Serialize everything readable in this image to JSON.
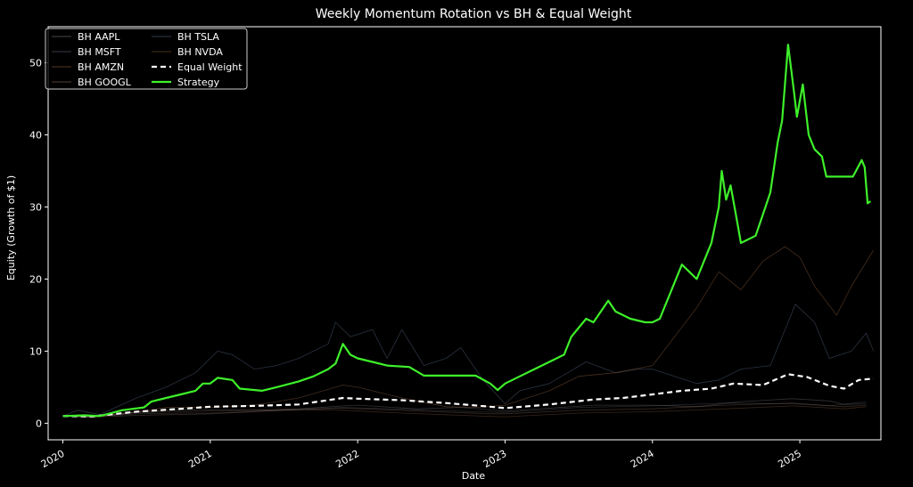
{
  "chart_data": {
    "type": "line",
    "title": "Weekly Momentum Rotation vs BH & Equal Weight",
    "xlabel": "Date",
    "ylabel": "Equity (Growth of $1)",
    "xlim": [
      2019.9,
      2025.55
    ],
    "ylim": [
      -2.3,
      55
    ],
    "x_ticks": [
      2020,
      2021,
      2022,
      2023,
      2024,
      2025
    ],
    "x_tick_labels": [
      "2020",
      "2021",
      "2022",
      "2023",
      "2024",
      "2025"
    ],
    "y_ticks": [
      0,
      10,
      20,
      30,
      40,
      50
    ],
    "y_tick_labels": [
      "0",
      "10",
      "20",
      "30",
      "40",
      "50"
    ],
    "grid": false,
    "legend_position": "top-left",
    "series": [
      {
        "name": "BH AAPL",
        "color": "#8a8a8a",
        "width": 0.8,
        "dash": "",
        "opacity": 0.35,
        "points": [
          [
            2020,
            1
          ],
          [
            2020.2,
            0.85
          ],
          [
            2020.5,
            1.5
          ],
          [
            2020.7,
            1.8
          ],
          [
            2021.0,
            1.9
          ],
          [
            2021.3,
            1.8
          ],
          [
            2021.6,
            2.0
          ],
          [
            2021.9,
            2.4
          ],
          [
            2022.0,
            2.5
          ],
          [
            2022.4,
            2.0
          ],
          [
            2022.7,
            2.2
          ],
          [
            2023.0,
            1.7
          ],
          [
            2023.3,
            2.1
          ],
          [
            2023.6,
            2.5
          ],
          [
            2024.0,
            2.5
          ],
          [
            2024.3,
            2.3
          ],
          [
            2024.6,
            3.0
          ],
          [
            2024.95,
            3.4
          ],
          [
            2025.2,
            3.1
          ],
          [
            2025.3,
            2.6
          ],
          [
            2025.45,
            2.7
          ]
        ]
      },
      {
        "name": "BH MSFT",
        "color": "#6a7080",
        "width": 0.8,
        "dash": "",
        "opacity": 0.35,
        "points": [
          [
            2020,
            1
          ],
          [
            2020.2,
            0.9
          ],
          [
            2020.5,
            1.3
          ],
          [
            2020.8,
            1.4
          ],
          [
            2021.0,
            1.4
          ],
          [
            2021.5,
            1.8
          ],
          [
            2021.9,
            2.2
          ],
          [
            2022.2,
            2.0
          ],
          [
            2022.8,
            1.6
          ],
          [
            2023.0,
            1.5
          ],
          [
            2023.5,
            2.2
          ],
          [
            2024.0,
            2.4
          ],
          [
            2024.5,
            2.8
          ],
          [
            2024.95,
            2.7
          ],
          [
            2025.2,
            2.4
          ],
          [
            2025.45,
            3.0
          ]
        ]
      },
      {
        "name": "BH AMZN",
        "color": "#9a6a4a",
        "width": 0.8,
        "dash": "",
        "opacity": 0.35,
        "points": [
          [
            2020,
            1
          ],
          [
            2020.2,
            1.0
          ],
          [
            2020.5,
            1.5
          ],
          [
            2020.8,
            1.6
          ],
          [
            2021.0,
            1.7
          ],
          [
            2021.5,
            1.9
          ],
          [
            2021.9,
            1.8
          ],
          [
            2022.3,
            1.4
          ],
          [
            2022.9,
            0.95
          ],
          [
            2023.0,
            0.9
          ],
          [
            2023.5,
            1.4
          ],
          [
            2024.0,
            1.6
          ],
          [
            2024.5,
            2.0
          ],
          [
            2024.95,
            2.4
          ],
          [
            2025.3,
            2.0
          ],
          [
            2025.45,
            2.3
          ]
        ]
      },
      {
        "name": "BH GOOGL",
        "color": "#a07860",
        "width": 0.8,
        "dash": "",
        "opacity": 0.35,
        "points": [
          [
            2020,
            1
          ],
          [
            2020.2,
            0.85
          ],
          [
            2020.5,
            1.1
          ],
          [
            2021.0,
            1.3
          ],
          [
            2021.5,
            1.8
          ],
          [
            2021.9,
            2.1
          ],
          [
            2022.4,
            1.7
          ],
          [
            2022.9,
            1.3
          ],
          [
            2023.0,
            1.3
          ],
          [
            2023.5,
            1.8
          ],
          [
            2024.0,
            2.0
          ],
          [
            2024.5,
            2.5
          ],
          [
            2024.95,
            2.8
          ],
          [
            2025.3,
            2.3
          ],
          [
            2025.45,
            2.5
          ]
        ]
      },
      {
        "name": "BH TSLA",
        "color": "#607090",
        "width": 0.8,
        "dash": "",
        "opacity": 0.45,
        "points": [
          [
            2020,
            1
          ],
          [
            2020.1,
            1.8
          ],
          [
            2020.25,
            1.2
          ],
          [
            2020.5,
            3.5
          ],
          [
            2020.7,
            5.0
          ],
          [
            2020.9,
            7.0
          ],
          [
            2021.05,
            10.0
          ],
          [
            2021.15,
            9.5
          ],
          [
            2021.3,
            7.5
          ],
          [
            2021.45,
            8.0
          ],
          [
            2021.6,
            9.0
          ],
          [
            2021.8,
            11.0
          ],
          [
            2021.85,
            14.0
          ],
          [
            2021.95,
            12.0
          ],
          [
            2022.1,
            13.0
          ],
          [
            2022.2,
            9.0
          ],
          [
            2022.3,
            13.0
          ],
          [
            2022.45,
            8.0
          ],
          [
            2022.6,
            9.0
          ],
          [
            2022.7,
            10.5
          ],
          [
            2022.85,
            6.0
          ],
          [
            2023.0,
            2.7
          ],
          [
            2023.1,
            4.5
          ],
          [
            2023.3,
            5.5
          ],
          [
            2023.55,
            8.5
          ],
          [
            2023.75,
            7.0
          ],
          [
            2023.9,
            7.5
          ],
          [
            2024.0,
            7.5
          ],
          [
            2024.3,
            5.5
          ],
          [
            2024.45,
            6.0
          ],
          [
            2024.6,
            7.5
          ],
          [
            2024.8,
            8.0
          ],
          [
            2024.92,
            14.0
          ],
          [
            2024.97,
            16.5
          ],
          [
            2025.1,
            14.0
          ],
          [
            2025.2,
            9.0
          ],
          [
            2025.35,
            10.0
          ],
          [
            2025.45,
            12.5
          ],
          [
            2025.5,
            10.0
          ]
        ]
      },
      {
        "name": "BH NVDA",
        "color": "#8a5a3a",
        "width": 0.8,
        "dash": "",
        "opacity": 0.5,
        "points": [
          [
            2020,
            1
          ],
          [
            2020.2,
            0.8
          ],
          [
            2020.4,
            1.3
          ],
          [
            2020.7,
            2.2
          ],
          [
            2021.0,
            2.2
          ],
          [
            2021.3,
            2.5
          ],
          [
            2021.6,
            3.5
          ],
          [
            2021.9,
            5.3
          ],
          [
            2022.0,
            5.0
          ],
          [
            2022.3,
            3.5
          ],
          [
            2022.6,
            2.3
          ],
          [
            2022.8,
            2.2
          ],
          [
            2023.0,
            2.5
          ],
          [
            2023.3,
            4.5
          ],
          [
            2023.5,
            6.5
          ],
          [
            2023.75,
            7.0
          ],
          [
            2024.0,
            8.0
          ],
          [
            2024.15,
            12.0
          ],
          [
            2024.3,
            16.0
          ],
          [
            2024.45,
            21.0
          ],
          [
            2024.6,
            18.5
          ],
          [
            2024.75,
            22.5
          ],
          [
            2024.9,
            24.5
          ],
          [
            2025.0,
            23.0
          ],
          [
            2025.1,
            19.0
          ],
          [
            2025.25,
            15.0
          ],
          [
            2025.35,
            19.0
          ],
          [
            2025.5,
            24.0
          ]
        ]
      },
      {
        "name": "Equal Weight",
        "color": "#ffffff",
        "width": 2.2,
        "dash": "6,4",
        "opacity": 1,
        "points": [
          [
            2020,
            1
          ],
          [
            2020.2,
            0.95
          ],
          [
            2020.5,
            1.6
          ],
          [
            2020.8,
            2.0
          ],
          [
            2021.0,
            2.3
          ],
          [
            2021.3,
            2.4
          ],
          [
            2021.6,
            2.6
          ],
          [
            2021.9,
            3.5
          ],
          [
            2022.0,
            3.4
          ],
          [
            2022.3,
            3.2
          ],
          [
            2022.6,
            2.8
          ],
          [
            2022.9,
            2.3
          ],
          [
            2023.0,
            2.1
          ],
          [
            2023.3,
            2.6
          ],
          [
            2023.6,
            3.3
          ],
          [
            2023.8,
            3.5
          ],
          [
            2024.0,
            4.0
          ],
          [
            2024.2,
            4.5
          ],
          [
            2024.4,
            4.8
          ],
          [
            2024.55,
            5.5
          ],
          [
            2024.75,
            5.3
          ],
          [
            2024.92,
            6.8
          ],
          [
            2025.05,
            6.4
          ],
          [
            2025.2,
            5.2
          ],
          [
            2025.3,
            4.8
          ],
          [
            2025.4,
            6.0
          ],
          [
            2025.5,
            6.2
          ]
        ]
      },
      {
        "name": "Strategy",
        "color": "#3ef02a",
        "width": 2.2,
        "dash": "",
        "opacity": 1,
        "points": [
          [
            2020,
            1
          ],
          [
            2020.15,
            1.1
          ],
          [
            2020.25,
            1.0
          ],
          [
            2020.4,
            1.8
          ],
          [
            2020.55,
            2.2
          ],
          [
            2020.6,
            3.0
          ],
          [
            2020.7,
            3.5
          ],
          [
            2020.8,
            4.0
          ],
          [
            2020.9,
            4.5
          ],
          [
            2020.95,
            5.5
          ],
          [
            2021.0,
            5.5
          ],
          [
            2021.05,
            6.3
          ],
          [
            2021.15,
            6.0
          ],
          [
            2021.2,
            4.8
          ],
          [
            2021.35,
            4.5
          ],
          [
            2021.45,
            5.0
          ],
          [
            2021.6,
            5.8
          ],
          [
            2021.7,
            6.5
          ],
          [
            2021.8,
            7.5
          ],
          [
            2021.85,
            8.3
          ],
          [
            2021.9,
            11.0
          ],
          [
            2021.95,
            9.5
          ],
          [
            2022.0,
            9.0
          ],
          [
            2022.1,
            8.5
          ],
          [
            2022.2,
            8.0
          ],
          [
            2022.35,
            7.8
          ],
          [
            2022.45,
            6.6
          ],
          [
            2022.6,
            6.6
          ],
          [
            2022.8,
            6.6
          ],
          [
            2022.9,
            5.5
          ],
          [
            2022.95,
            4.6
          ],
          [
            2023.0,
            5.5
          ],
          [
            2023.1,
            6.5
          ],
          [
            2023.2,
            7.5
          ],
          [
            2023.3,
            8.5
          ],
          [
            2023.4,
            9.5
          ],
          [
            2023.45,
            12.0
          ],
          [
            2023.55,
            14.5
          ],
          [
            2023.6,
            14.0
          ],
          [
            2023.7,
            17.0
          ],
          [
            2023.75,
            15.5
          ],
          [
            2023.85,
            14.5
          ],
          [
            2023.95,
            14.0
          ],
          [
            2024.0,
            14.0
          ],
          [
            2024.05,
            14.5
          ],
          [
            2024.1,
            17.0
          ],
          [
            2024.2,
            22.0
          ],
          [
            2024.3,
            20.0
          ],
          [
            2024.4,
            25.0
          ],
          [
            2024.45,
            30.0
          ],
          [
            2024.47,
            35.0
          ],
          [
            2024.5,
            31.0
          ],
          [
            2024.53,
            33.0
          ],
          [
            2024.57,
            28.5
          ],
          [
            2024.6,
            25.0
          ],
          [
            2024.7,
            26.0
          ],
          [
            2024.75,
            29.0
          ],
          [
            2024.8,
            32.0
          ],
          [
            2024.85,
            39.0
          ],
          [
            2024.88,
            42.0
          ],
          [
            2024.92,
            52.5
          ],
          [
            2024.96,
            46.0
          ],
          [
            2024.98,
            42.5
          ],
          [
            2025.02,
            47.0
          ],
          [
            2025.06,
            40.0
          ],
          [
            2025.1,
            38.0
          ],
          [
            2025.15,
            37.0
          ],
          [
            2025.18,
            34.2
          ],
          [
            2025.3,
            34.2
          ],
          [
            2025.36,
            34.2
          ],
          [
            2025.42,
            36.5
          ],
          [
            2025.44,
            35.5
          ],
          [
            2025.46,
            30.5
          ],
          [
            2025.48,
            30.8
          ]
        ]
      }
    ]
  }
}
